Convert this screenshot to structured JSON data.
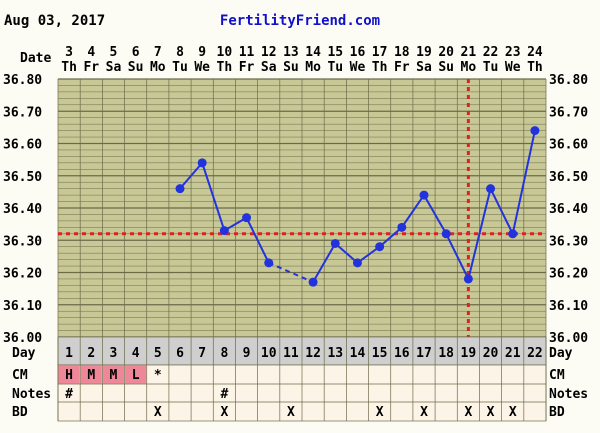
{
  "header": {
    "date": "Aug 03, 2017",
    "site": "FertilityFriend.com"
  },
  "labels": {
    "date_row": "Date",
    "day_row": "Day",
    "cm_row": "CM",
    "notes_row": "Notes",
    "bd_row": "BD"
  },
  "colors": {
    "grid_bg": "#c8c896",
    "grid_line": "#6b6b4a",
    "line": "#2233dd",
    "coverline": "#dd2222",
    "cm_highlight": "#ee8899",
    "day_bg": "#cfcfcf",
    "row_bg": "#fdf4e8",
    "site_text": "#1111cc"
  },
  "chart_data": {
    "type": "line",
    "title": "",
    "ylim": [
      36.0,
      36.8
    ],
    "y_ticks": [
      "36.00",
      "36.10",
      "36.20",
      "36.30",
      "36.40",
      "36.50",
      "36.60",
      "36.70",
      "36.80"
    ],
    "dates": [
      "3",
      "4",
      "5",
      "6",
      "7",
      "8",
      "9",
      "10",
      "11",
      "12",
      "13",
      "14",
      "15",
      "16",
      "17",
      "18",
      "19",
      "20",
      "21",
      "22",
      "23",
      "24"
    ],
    "weekdays": [
      "Th",
      "Fr",
      "Sa",
      "Su",
      "Mo",
      "Tu",
      "We",
      "Th",
      "Fr",
      "Sa",
      "Su",
      "Mo",
      "Tu",
      "We",
      "Th",
      "Fr",
      "Sa",
      "Su",
      "Mo",
      "Tu",
      "We",
      "Th"
    ],
    "cycle_days": [
      "1",
      "2",
      "3",
      "4",
      "5",
      "6",
      "7",
      "8",
      "9",
      "10",
      "11",
      "12",
      "13",
      "14",
      "15",
      "16",
      "17",
      "18",
      "19",
      "20",
      "21",
      "22"
    ],
    "series": [
      {
        "values": [
          null,
          null,
          null,
          null,
          null,
          36.46,
          36.54,
          36.33,
          36.37,
          36.23,
          null,
          36.17,
          36.29,
          36.23,
          36.28,
          36.34,
          36.44,
          36.32,
          36.18,
          36.46,
          36.32,
          36.64
        ]
      }
    ],
    "coverline": 36.32,
    "ovulation_day": "19",
    "cm": [
      "H",
      "M",
      "M",
      "L",
      "*",
      "",
      "",
      "",
      "",
      "",
      "",
      "",
      "",
      "",
      "",
      "",
      "",
      "",
      "",
      "",
      "",
      ""
    ],
    "notes": [
      "#",
      "",
      "",
      "",
      "",
      "",
      "",
      "#",
      "",
      "",
      "",
      "",
      "",
      "",
      "",
      "",
      "",
      "",
      "",
      "",
      "",
      ""
    ],
    "bd": [
      "",
      "",
      "",
      "",
      "X",
      "",
      "",
      "X",
      "",
      "",
      "X",
      "",
      "",
      "",
      "X",
      "",
      "X",
      "",
      "X",
      "X",
      "X",
      ""
    ]
  }
}
